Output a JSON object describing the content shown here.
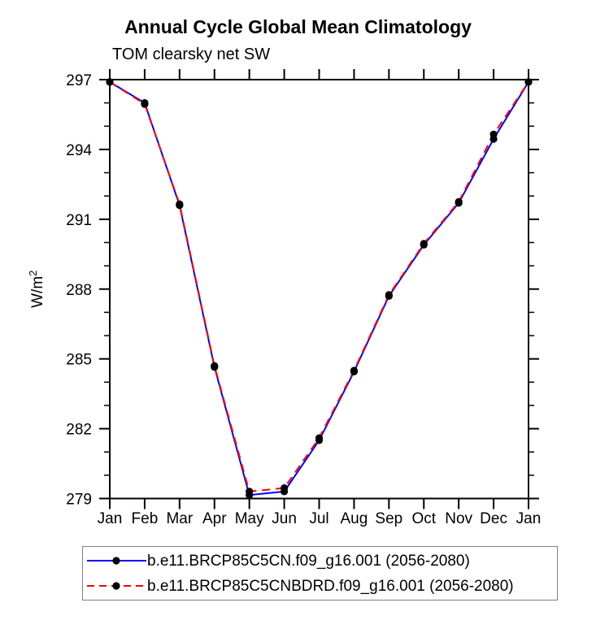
{
  "title": "Annual Cycle Global Mean Climatology",
  "subtitle": "TOM clearsky net SW",
  "chart_data": {
    "type": "line",
    "title": "Annual Cycle Global Mean Climatology",
    "subtitle": "TOM clearsky net SW",
    "ylabel": "W/m²",
    "ylabel_base": "W/m",
    "ylabel_sup": "2",
    "x_categories": [
      "Jan",
      "Feb",
      "Mar",
      "Apr",
      "May",
      "Jun",
      "Jul",
      "Aug",
      "Sep",
      "Oct",
      "Nov",
      "Dec",
      "Jan"
    ],
    "ylim": [
      279,
      297
    ],
    "y_major_step": 3,
    "y_minor_step": 1,
    "y_major_ticklabels": [
      "279",
      "282",
      "285",
      "288",
      "291",
      "294",
      "297"
    ],
    "grid": false,
    "legend_position": "bottom",
    "axis_color": "#000000",
    "marker_color": "#000000",
    "series": [
      {
        "name": "b.e11.BRCP85C5CN.f09_g16.001 (2056-2080)",
        "color": "#0000ff",
        "style": "solid",
        "marker": "filled-circle",
        "values": [
          296.9,
          296.0,
          291.6,
          284.65,
          279.15,
          279.3,
          281.5,
          284.45,
          287.7,
          289.9,
          291.7,
          294.45,
          296.9
        ]
      },
      {
        "name": "b.e11.BRCP85C5CNBDRD.f09_g16.001 (2056-2080)",
        "color": "#ff0000",
        "style": "dashed",
        "marker": "filled-circle",
        "values": [
          296.9,
          295.95,
          291.65,
          284.7,
          279.3,
          279.45,
          281.6,
          284.5,
          287.75,
          289.95,
          291.75,
          294.65,
          296.9
        ]
      }
    ]
  }
}
